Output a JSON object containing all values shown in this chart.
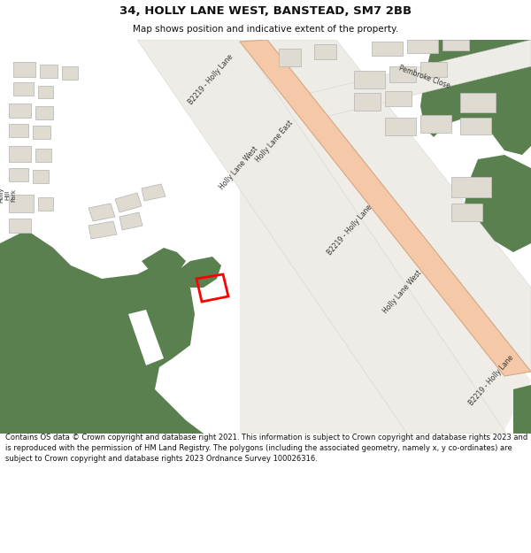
{
  "title": "34, HOLLY LANE WEST, BANSTEAD, SM7 2BB",
  "subtitle": "Map shows position and indicative extent of the property.",
  "footer": "Contains OS data © Crown copyright and database right 2021. This information is subject to Crown copyright and database rights 2023 and is reproduced with the permission of HM Land Registry. The polygons (including the associated geometry, namely x, y co-ordinates) are subject to Crown copyright and database rights 2023 Ordnance Survey 100026316.",
  "bg_color": "#ffffff",
  "map_bg": "#f0ede8",
  "road_color": "#f5c8a8",
  "road_edge_color": "#d4a882",
  "green_color": "#5a8050",
  "building_color": "#e0dbd0",
  "building_edge": "#bbbbbb",
  "property_color": "#ff0000",
  "road_area_color": "#f0ede8",
  "grey_road_color": "#e8e5e0"
}
